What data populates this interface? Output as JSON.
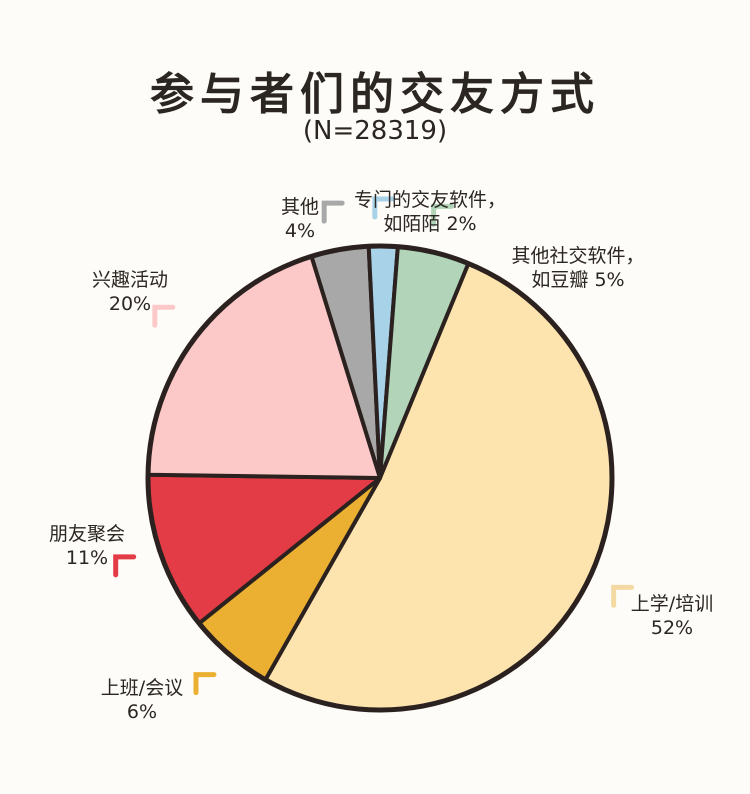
{
  "title": "参与者们的交友方式",
  "subtitle": "(N=28319)",
  "chart_data": {
    "type": "pie",
    "title": "参与者们的交友方式",
    "subtitle": "(N=28319)",
    "slices": [
      {
        "label": "其他",
        "value": 4,
        "value_label": "4%",
        "color": "#a8a8a8"
      },
      {
        "label": "专门的交友软件，如陌陌",
        "label_line1": "专门的交友软件，",
        "label_line2": "如陌陌 2%",
        "value": 2,
        "color": "#a8d2e8"
      },
      {
        "label": "其他社交软件，如豆瓣",
        "label_line1": "其他社交软件，",
        "label_line2": "如豆瓣 5%",
        "value": 5,
        "color": "#b2d4b8"
      },
      {
        "label": "上学/培训",
        "value": 52,
        "value_label": "52%",
        "color": "#fde3ad"
      },
      {
        "label": "上班/会议",
        "value": 6,
        "value_label": "6%",
        "color": "#ebb032"
      },
      {
        "label": "朋友聚会",
        "value": 11,
        "value_label": "11%",
        "color": "#e33c46"
      },
      {
        "label": "兴趣活动",
        "value": 20,
        "value_label": "20%",
        "color": "#fcc8c8"
      }
    ]
  }
}
